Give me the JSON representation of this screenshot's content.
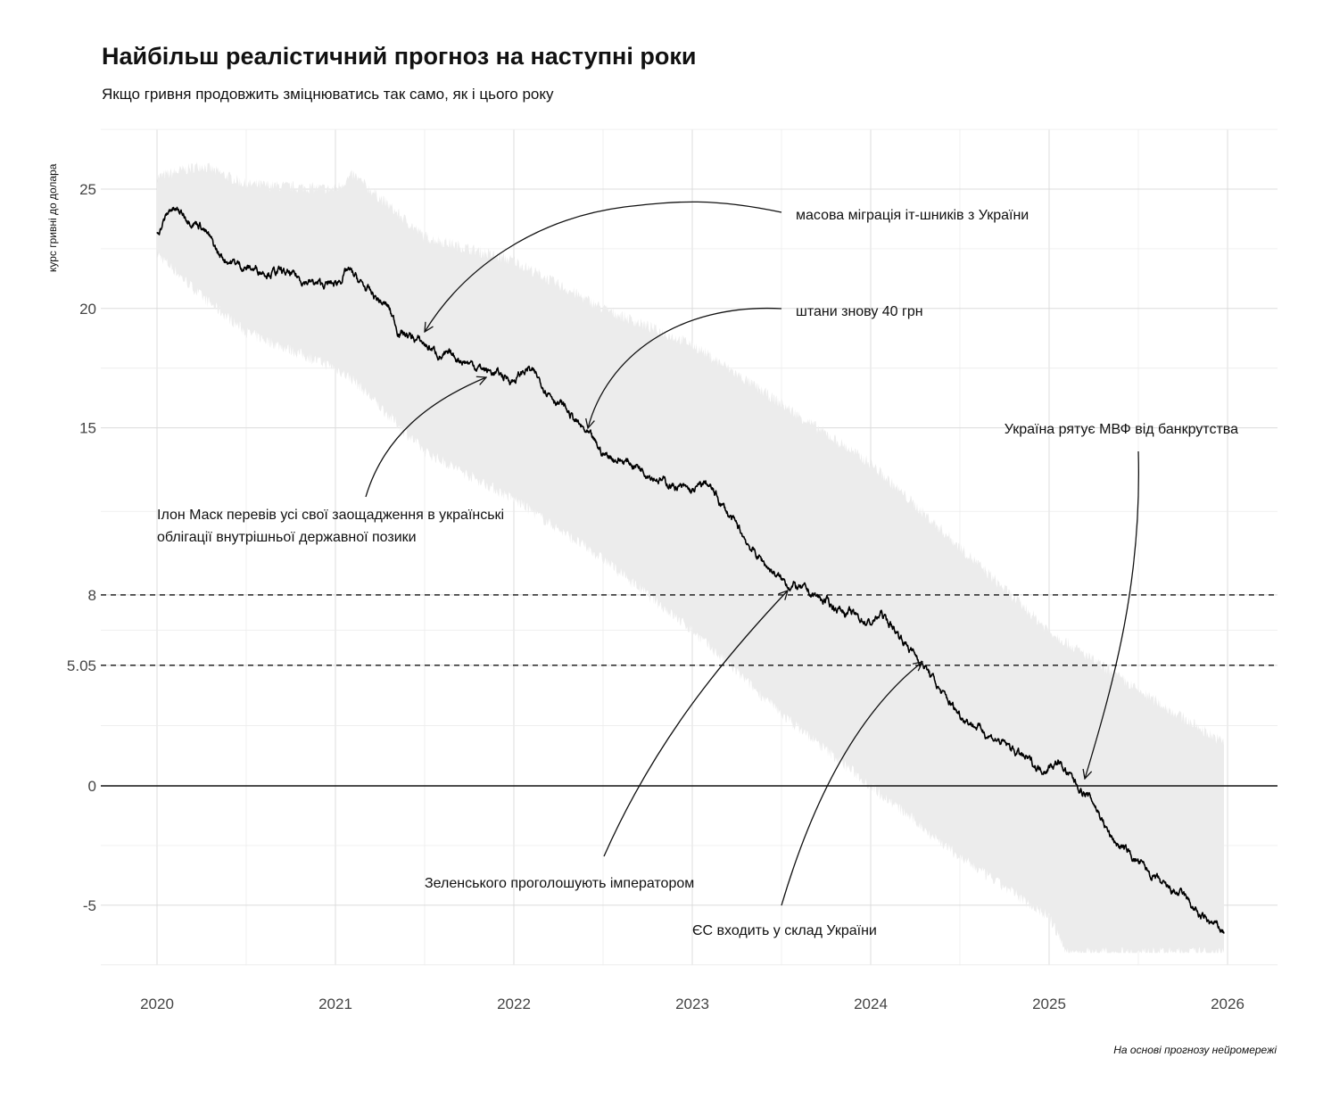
{
  "chart_data": {
    "type": "line",
    "title": "Найбільш реалістичний прогноз на наступні роки",
    "subtitle": "Якщо гривня продовжить зміцнюватись так само, як і цього року",
    "ylabel": "курс гривні до долара",
    "xlabel": "",
    "caption": "На основі прогнозу нейромережі",
    "xlim": [
      2019.7,
      2026.28
    ],
    "ylim": [
      -7.5,
      27.5
    ],
    "x_ticks": [
      "2020",
      "2021",
      "2022",
      "2023",
      "2024",
      "2025",
      "2026"
    ],
    "y_ticks": [
      {
        "value": 25,
        "label": "25"
      },
      {
        "value": 20,
        "label": "20"
      },
      {
        "value": 15,
        "label": "15"
      },
      {
        "value": 8,
        "label": "8"
      },
      {
        "value": 5.05,
        "label": "5.05"
      },
      {
        "value": 0,
        "label": "0"
      },
      {
        "value": -5,
        "label": "-5"
      }
    ],
    "grid": true,
    "reference_lines": [
      {
        "value": 8,
        "style": "dashed"
      },
      {
        "value": 5.05,
        "style": "dashed"
      },
      {
        "value": 0,
        "style": "solid"
      }
    ],
    "colors": {
      "line": "#000000",
      "band": "#ececec",
      "grid": "#dcdcdc"
    },
    "series": [
      {
        "x": [
          2020.0,
          2020.08,
          2020.25,
          2020.35,
          2020.5,
          2020.7,
          2020.9,
          2021.0,
          2021.07,
          2021.2,
          2021.3,
          2021.35,
          2021.5,
          2021.6,
          2021.7,
          2021.85,
          2022.0,
          2022.08,
          2022.2,
          2022.3,
          2022.4,
          2022.5,
          2022.7,
          2022.85,
          2023.0,
          2023.08,
          2023.2,
          2023.35,
          2023.5,
          2023.65,
          2023.8,
          2024.0,
          2024.06,
          2024.15,
          2024.3,
          2024.4,
          2024.5,
          2024.65,
          2024.8,
          2024.95,
          2025.05,
          2025.15,
          2025.25,
          2025.35,
          2025.5,
          2025.65,
          2025.75,
          2025.85,
          2025.98
        ],
        "y": [
          23.2,
          24.2,
          23.5,
          22.2,
          21.7,
          21.5,
          21.0,
          21.0,
          21.6,
          20.6,
          20.0,
          19.1,
          18.5,
          18.0,
          17.9,
          17.4,
          17.0,
          17.5,
          16.5,
          15.7,
          14.8,
          13.9,
          13.4,
          12.7,
          12.3,
          12.7,
          11.4,
          9.75,
          8.6,
          8.1,
          7.5,
          6.8,
          7.2,
          6.4,
          5.05,
          3.85,
          3.0,
          2.2,
          1.5,
          0.7,
          1.0,
          0.1,
          -0.7,
          -2.2,
          -3.2,
          -4.3,
          -4.6,
          -5.5,
          -6.1
        ]
      }
    ],
    "band": {
      "x": [
        2020.0,
        2020.25,
        2020.5,
        2021.0,
        2021.1,
        2021.5,
        2022.0,
        2022.5,
        2023.0,
        2023.5,
        2024.0,
        2024.5,
        2025.0,
        2025.1,
        2025.5,
        2025.98
      ],
      "upper": [
        25.5,
        26.0,
        25.2,
        25.0,
        25.6,
        23.0,
        22.0,
        20.0,
        18.5,
        16.0,
        13.5,
        10.0,
        6.5,
        6.0,
        4.0,
        1.8
      ],
      "lower": [
        22.3,
        20.5,
        19.0,
        17.5,
        17.0,
        14.0,
        12.0,
        9.5,
        6.5,
        3.0,
        0.0,
        -3.0,
        -5.5,
        -7.0,
        -7.0,
        -7.0
      ]
    },
    "annotations": [
      {
        "text": [
          "масова міграція іт-шників з України"
        ],
        "target": [
          2021.5,
          18.9
        ]
      },
      {
        "text": [
          "штани знову 40 грн"
        ],
        "target": [
          2022.42,
          15.0
        ]
      },
      {
        "text": [
          "Україна рятує МВФ від банкрутства"
        ],
        "target": [
          2025.2,
          0.3
        ]
      },
      {
        "text": [
          "Ілон Маск перевів усі свої заощадження в українські",
          "облігації внутрішньої державної позики"
        ],
        "target": [
          2021.85,
          17.1
        ]
      },
      {
        "text": [
          "Зеленського проголошують імператором"
        ],
        "target": [
          2023.53,
          8.2
        ]
      },
      {
        "text": [
          "ЄС входить у склад України"
        ],
        "target": [
          2024.29,
          5.2
        ]
      }
    ]
  }
}
